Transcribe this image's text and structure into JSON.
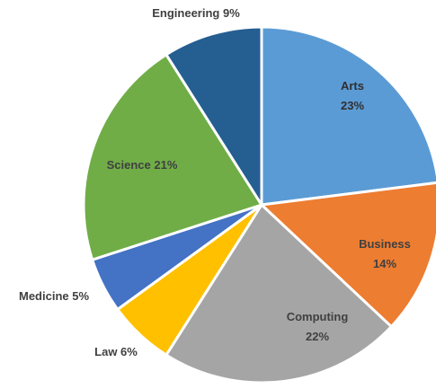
{
  "chart_data": {
    "type": "pie",
    "categories": [
      "Arts",
      "Business",
      "Computing",
      "Law",
      "Medicine",
      "Science",
      "Engineering"
    ],
    "values": [
      23,
      14,
      22,
      6,
      5,
      21,
      9
    ],
    "units": "%",
    "colors": [
      "#5b9bd5",
      "#ed7d31",
      "#a5a5a5",
      "#ffc000",
      "#4472c4",
      "#70ad47",
      "#255e91"
    ],
    "data_labels": [
      {
        "name": "Arts",
        "value": "23%",
        "placement": "inside",
        "line_break": true
      },
      {
        "name": "Business",
        "value": "14%",
        "placement": "inside",
        "line_break": true
      },
      {
        "name": "Computing",
        "value": "22%",
        "placement": "inside",
        "line_break": true
      },
      {
        "name": "Law",
        "value": "6%",
        "placement": "outside",
        "line_break": false
      },
      {
        "name": "Medicine",
        "value": "5%",
        "placement": "outside",
        "line_break": false
      },
      {
        "name": "Science",
        "value": "21%",
        "placement": "inside",
        "line_break": false
      },
      {
        "name": "Engineering",
        "value": "9%",
        "placement": "outside",
        "line_break": false
      }
    ],
    "legend": "none",
    "start_angle": "12 o'clock, clockwise"
  }
}
